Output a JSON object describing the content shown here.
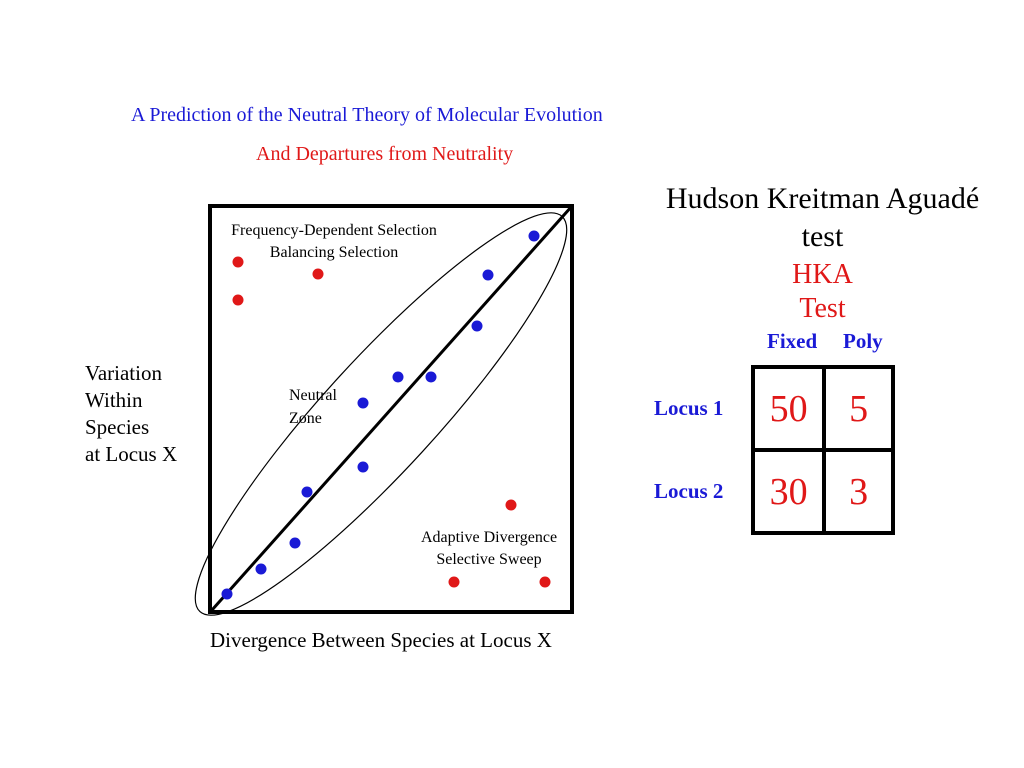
{
  "title": {
    "line1": "A Prediction of the Neutral Theory of Molecular Evolution",
    "line2": "And Departures from Neutrality"
  },
  "diagram": {
    "y_axis_label": [
      "Variation",
      "Within",
      "Species",
      "at Locus X"
    ],
    "x_axis_label": "Divergence Between Species at Locus X",
    "region_labels": {
      "top_left": [
        "Frequency-Dependent Selection",
        "Balancing Selection"
      ],
      "center": [
        "Neutral",
        "Zone"
      ],
      "bottom_right": [
        "Adaptive Divergence",
        "Selective Sweep"
      ]
    },
    "colors": {
      "neutral_point": "#1a1ad6",
      "selected_point": "#e01818"
    }
  },
  "hka": {
    "title": [
      "Hudson Kreitman Aguadé",
      "test"
    ],
    "abbreviation": [
      "HKA",
      "Test"
    ],
    "columns": [
      "Fixed",
      "Poly"
    ],
    "rows": [
      {
        "label": "Locus 1",
        "fixed": "50",
        "poly": "5"
      },
      {
        "label": "Locus 2",
        "fixed": "30",
        "poly": "3"
      }
    ]
  }
}
